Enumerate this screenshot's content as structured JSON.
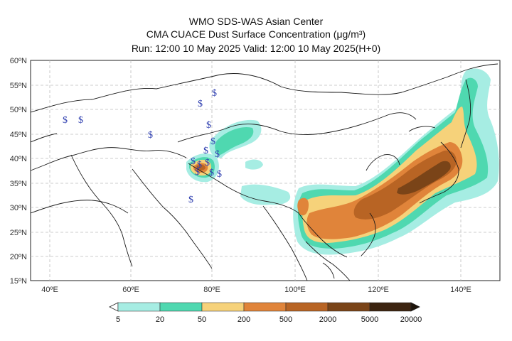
{
  "header": {
    "line1": "WMO SDS-WAS Asian Center",
    "line2": "CMA CUACE Dust Surface Concentration (μg/m³)",
    "line3": "Run: 12:00 10 May 2025     Valid: 12:00 10 May 2025(H+0)"
  },
  "axes": {
    "lat_labels": [
      "60ºN",
      "55ºN",
      "50ºN",
      "45ºN",
      "40ºN",
      "35ºN",
      "30ºN",
      "25ºN",
      "20ºN",
      "15ºN"
    ],
    "lon_labels": [
      "40ºE",
      "60ºE",
      "80ºE",
      "100ºE",
      "120ºE",
      "140ºE"
    ]
  },
  "colorbar": {
    "labels": [
      "5",
      "20",
      "50",
      "200",
      "500",
      "2000",
      "5000",
      "20000"
    ],
    "colors": [
      "#a6ede3",
      "#4fd8b0",
      "#f6d27a",
      "#e0843a",
      "#b86424",
      "#7a4418",
      "#3c2410"
    ]
  },
  "colors": {
    "marker": "#2f3fb0",
    "border": "#1a1a1a",
    "grid": "#bdbdbd"
  },
  "marker_symbol": "$"
}
